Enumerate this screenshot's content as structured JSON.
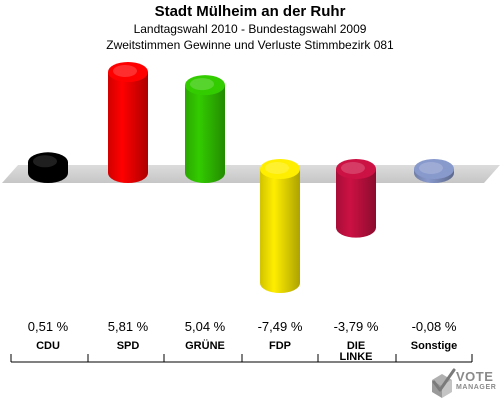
{
  "chart_data": {
    "type": "bar",
    "title": "Stadt Mülheim an der Ruhr",
    "subtitle_lines": [
      "Landtagswahl 2010 - Bundestagswahl 2009",
      "Zweitstimmen Gewinne und Verluste Stimmbezirk 081"
    ],
    "categories": [
      "CDU",
      "SPD",
      "GRÜNE",
      "FDP",
      "DIE\nLINKE",
      "Sonstige"
    ],
    "values": [
      0.51,
      5.81,
      5.04,
      -7.49,
      -3.79,
      -0.08
    ],
    "value_labels": [
      "0,51 %",
      "5,81 %",
      "5,04 %",
      "-7,49 %",
      "-3,79 %",
      "-0,08 %"
    ],
    "colors": [
      "#000000",
      "#ff0000",
      "#33cc00",
      "#ffee00",
      "#cc1144",
      "#8899cc"
    ],
    "unit": "%",
    "ylim": [
      -7.49,
      5.81
    ],
    "grid": false,
    "legend": "none"
  },
  "logo": {
    "line_1": "VOTE",
    "line_2": "MANAGER",
    "icon": "ballot-check-icon"
  }
}
